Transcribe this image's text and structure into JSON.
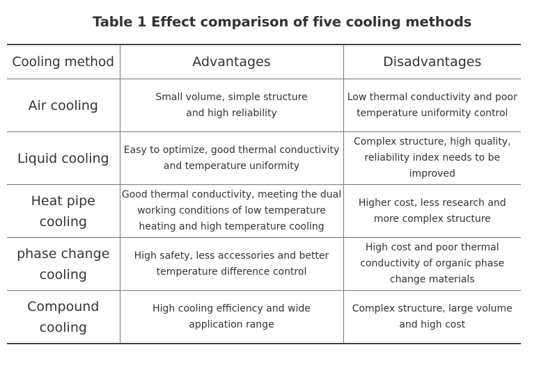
{
  "title": "Table 1 Effect comparison of five cooling methods",
  "columns": [
    "Cooling method",
    "Advantages",
    "Disadvantages"
  ],
  "rows": [
    {
      "method": "Air cooling",
      "advantages": "Small volume, simple structure and high reliability",
      "disadvantages": "Low thermal conductivity and poor temperature uniformity control"
    },
    {
      "method": "Liquid cooling",
      "advantages": "Easy to optimize, good thermal conductivity and temperature uniformity",
      "disadvantages": "Complex structure, high quality, reliability index needs to be improved"
    },
    {
      "method": "Heat pipe cooling",
      "advantages": "Good thermal conductivity, meeting the dual working conditions of low temperature heating and high temperature cooling",
      "disadvantages": "Higher cost, less research and more complex structure"
    },
    {
      "method": "phase change cooling",
      "advantages": "High safety, less accessories and better temperature difference control",
      "disadvantages": "High cost and poor thermal conductivity of organic phase change materials"
    },
    {
      "method": "Compound cooling",
      "advantages": "High cooling efficiency and wide application range",
      "disadvantages": "Complex structure, large volume and high cost"
    }
  ]
}
